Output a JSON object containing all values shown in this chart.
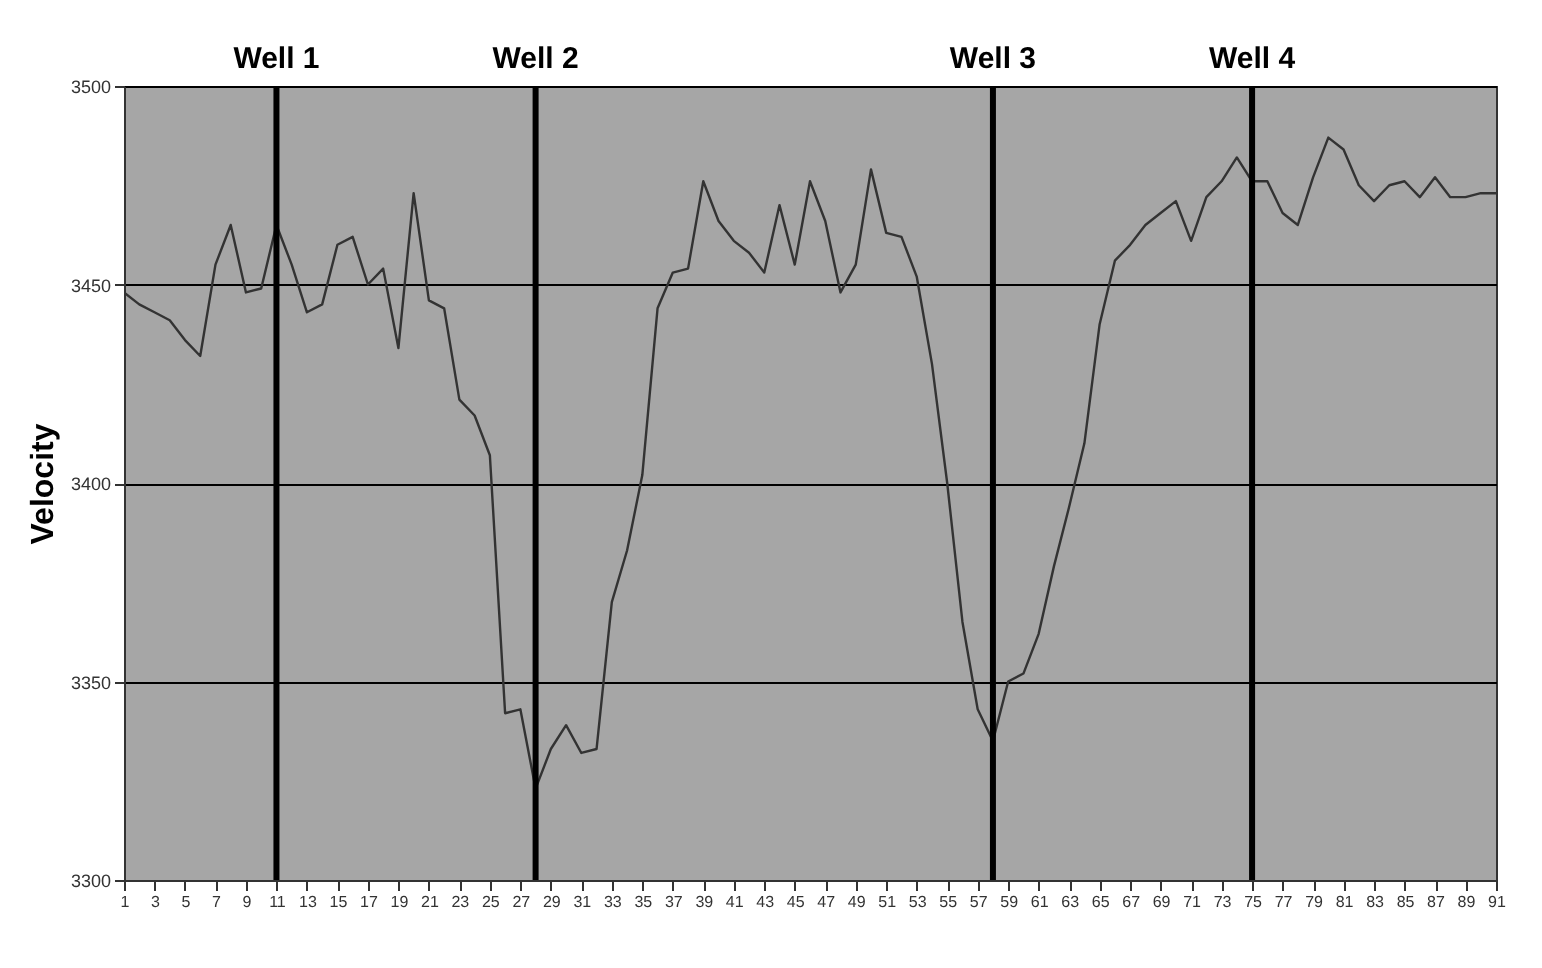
{
  "chart_data": {
    "type": "line",
    "ylabel": "Velocity",
    "x": [
      1,
      2,
      3,
      4,
      5,
      6,
      7,
      8,
      9,
      10,
      11,
      12,
      13,
      14,
      15,
      16,
      17,
      18,
      19,
      20,
      21,
      22,
      23,
      24,
      25,
      26,
      27,
      28,
      29,
      30,
      31,
      32,
      33,
      34,
      35,
      36,
      37,
      38,
      39,
      40,
      41,
      42,
      43,
      44,
      45,
      46,
      47,
      48,
      49,
      50,
      51,
      52,
      53,
      54,
      55,
      56,
      57,
      58,
      59,
      60,
      61,
      62,
      63,
      64,
      65,
      66,
      67,
      68,
      69,
      70,
      71,
      72,
      73,
      74,
      75,
      76,
      77,
      78,
      79,
      80,
      81,
      82,
      83,
      84,
      85,
      86,
      87,
      88,
      89,
      90,
      91
    ],
    "series": [
      {
        "color": "#333333",
        "values": [
          3448,
          3445,
          3443,
          3441,
          3436,
          3432,
          3455,
          3465,
          3448,
          3449,
          3465,
          3455,
          3443,
          3445,
          3460,
          3462,
          3450,
          3454,
          3434,
          3473,
          3446,
          3444,
          3421,
          3417,
          3407,
          3342,
          3343,
          3323,
          3333,
          3339,
          3332,
          3333,
          3370,
          3383,
          3402,
          3444,
          3453,
          3454,
          3476,
          3466,
          3461,
          3458,
          3453,
          3470,
          3455,
          3476,
          3466,
          3448,
          3455,
          3479,
          3463,
          3462,
          3452,
          3430,
          3400,
          3365,
          3343,
          3335,
          3350,
          3352,
          3362,
          3379,
          3394,
          3410,
          3440,
          3456,
          3460,
          3465,
          3468,
          3471,
          3461,
          3472,
          3476,
          3482,
          3476,
          3476,
          3468,
          3465,
          3477,
          3487,
          3484,
          3475,
          3471,
          3475,
          3476,
          3472,
          3477,
          3472,
          3472,
          3473,
          3473
        ]
      }
    ],
    "xlim": [
      1,
      91
    ],
    "xticks": [
      1,
      3,
      5,
      7,
      9,
      11,
      13,
      15,
      17,
      19,
      21,
      23,
      25,
      27,
      29,
      31,
      33,
      35,
      37,
      39,
      41,
      43,
      45,
      47,
      49,
      51,
      53,
      55,
      57,
      59,
      61,
      63,
      65,
      67,
      69,
      71,
      73,
      75,
      77,
      79,
      81,
      83,
      85,
      87,
      89,
      91
    ],
    "ylim": [
      3300,
      3500
    ],
    "yticks": [
      3300,
      3350,
      3400,
      3450,
      3500
    ],
    "ref_lines": [
      {
        "axis": "x",
        "value": 11,
        "label": "Well 1",
        "color": "#000000"
      },
      {
        "axis": "x",
        "value": 28,
        "label": "Well 2",
        "color": "#000000"
      },
      {
        "axis": "x",
        "value": 58,
        "label": "Well 3",
        "color": "#000000"
      },
      {
        "axis": "x",
        "value": 75,
        "label": "Well 4",
        "color": "#000000"
      }
    ],
    "grid": "y"
  }
}
